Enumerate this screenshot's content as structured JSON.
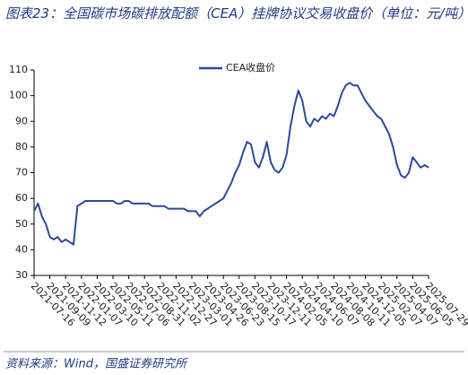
{
  "title": "图表23：全国碳市场碳排放配额（CEA）挂牌协议交易收盘价（单位：元/吨）",
  "source": "资料来源：Wind，国盛证券研究所",
  "chart_data": {
    "type": "line",
    "categories": [
      "2021-07-16",
      null,
      null,
      null,
      "2021-09-09",
      null,
      null,
      null,
      "2021-11-12",
      null,
      null,
      null,
      "2022-01-07",
      null,
      null,
      null,
      "2022-03-10",
      null,
      null,
      null,
      "2022-05-11",
      null,
      null,
      null,
      "2022-07-06",
      null,
      null,
      null,
      "2022-08-31",
      null,
      null,
      null,
      "2022-11-02",
      null,
      null,
      null,
      "2022-12-27",
      null,
      null,
      null,
      "2023-03-01",
      null,
      null,
      null,
      "2023-04-26",
      null,
      null,
      null,
      "2023-06-23",
      null,
      null,
      null,
      "2023-08-15",
      null,
      null,
      null,
      "2023-10-17",
      null,
      null,
      null,
      "2023-12-11",
      null,
      null,
      null,
      "2024-02-05",
      null,
      null,
      null,
      "2024-04-10",
      null,
      null,
      null,
      "2024-06-07",
      null,
      null,
      null,
      "2024-08-08",
      null,
      null,
      null,
      "2024-10-11",
      null,
      null,
      null,
      "2024-12-05",
      null,
      null,
      null,
      "2025-02-07",
      null,
      null,
      null,
      "2025-04-07",
      null,
      null,
      null,
      "2025-06-05",
      null,
      null,
      null,
      "2025-07-29"
    ],
    "series": [
      {
        "name": "CEA收盘价",
        "color": "#2a4a9c",
        "values": [
          55,
          58,
          53,
          50,
          45,
          44,
          45,
          43,
          44,
          43,
          42,
          57,
          58,
          59,
          59,
          59,
          59,
          59,
          59,
          59,
          59,
          58,
          58,
          59,
          59,
          58,
          58,
          58,
          58,
          58,
          57,
          57,
          57,
          57,
          56,
          56,
          56,
          56,
          56,
          55,
          55,
          55,
          53,
          55,
          56,
          57,
          58,
          59,
          60,
          63,
          66,
          70,
          73,
          78,
          82,
          81,
          74,
          72,
          76,
          82,
          74,
          71,
          70,
          72,
          77,
          88,
          96,
          102,
          98,
          90,
          88,
          91,
          90,
          92,
          91,
          93,
          92,
          96,
          101,
          104,
          105,
          104,
          104,
          101,
          98,
          96,
          94,
          92,
          91,
          88,
          85,
          80,
          73,
          69,
          68,
          70,
          76,
          74,
          72,
          73,
          72
        ]
      }
    ],
    "ylim": [
      30,
      110
    ],
    "yticks": [
      30,
      40,
      50,
      60,
      70,
      80,
      90,
      100,
      110
    ],
    "legend": "top"
  }
}
